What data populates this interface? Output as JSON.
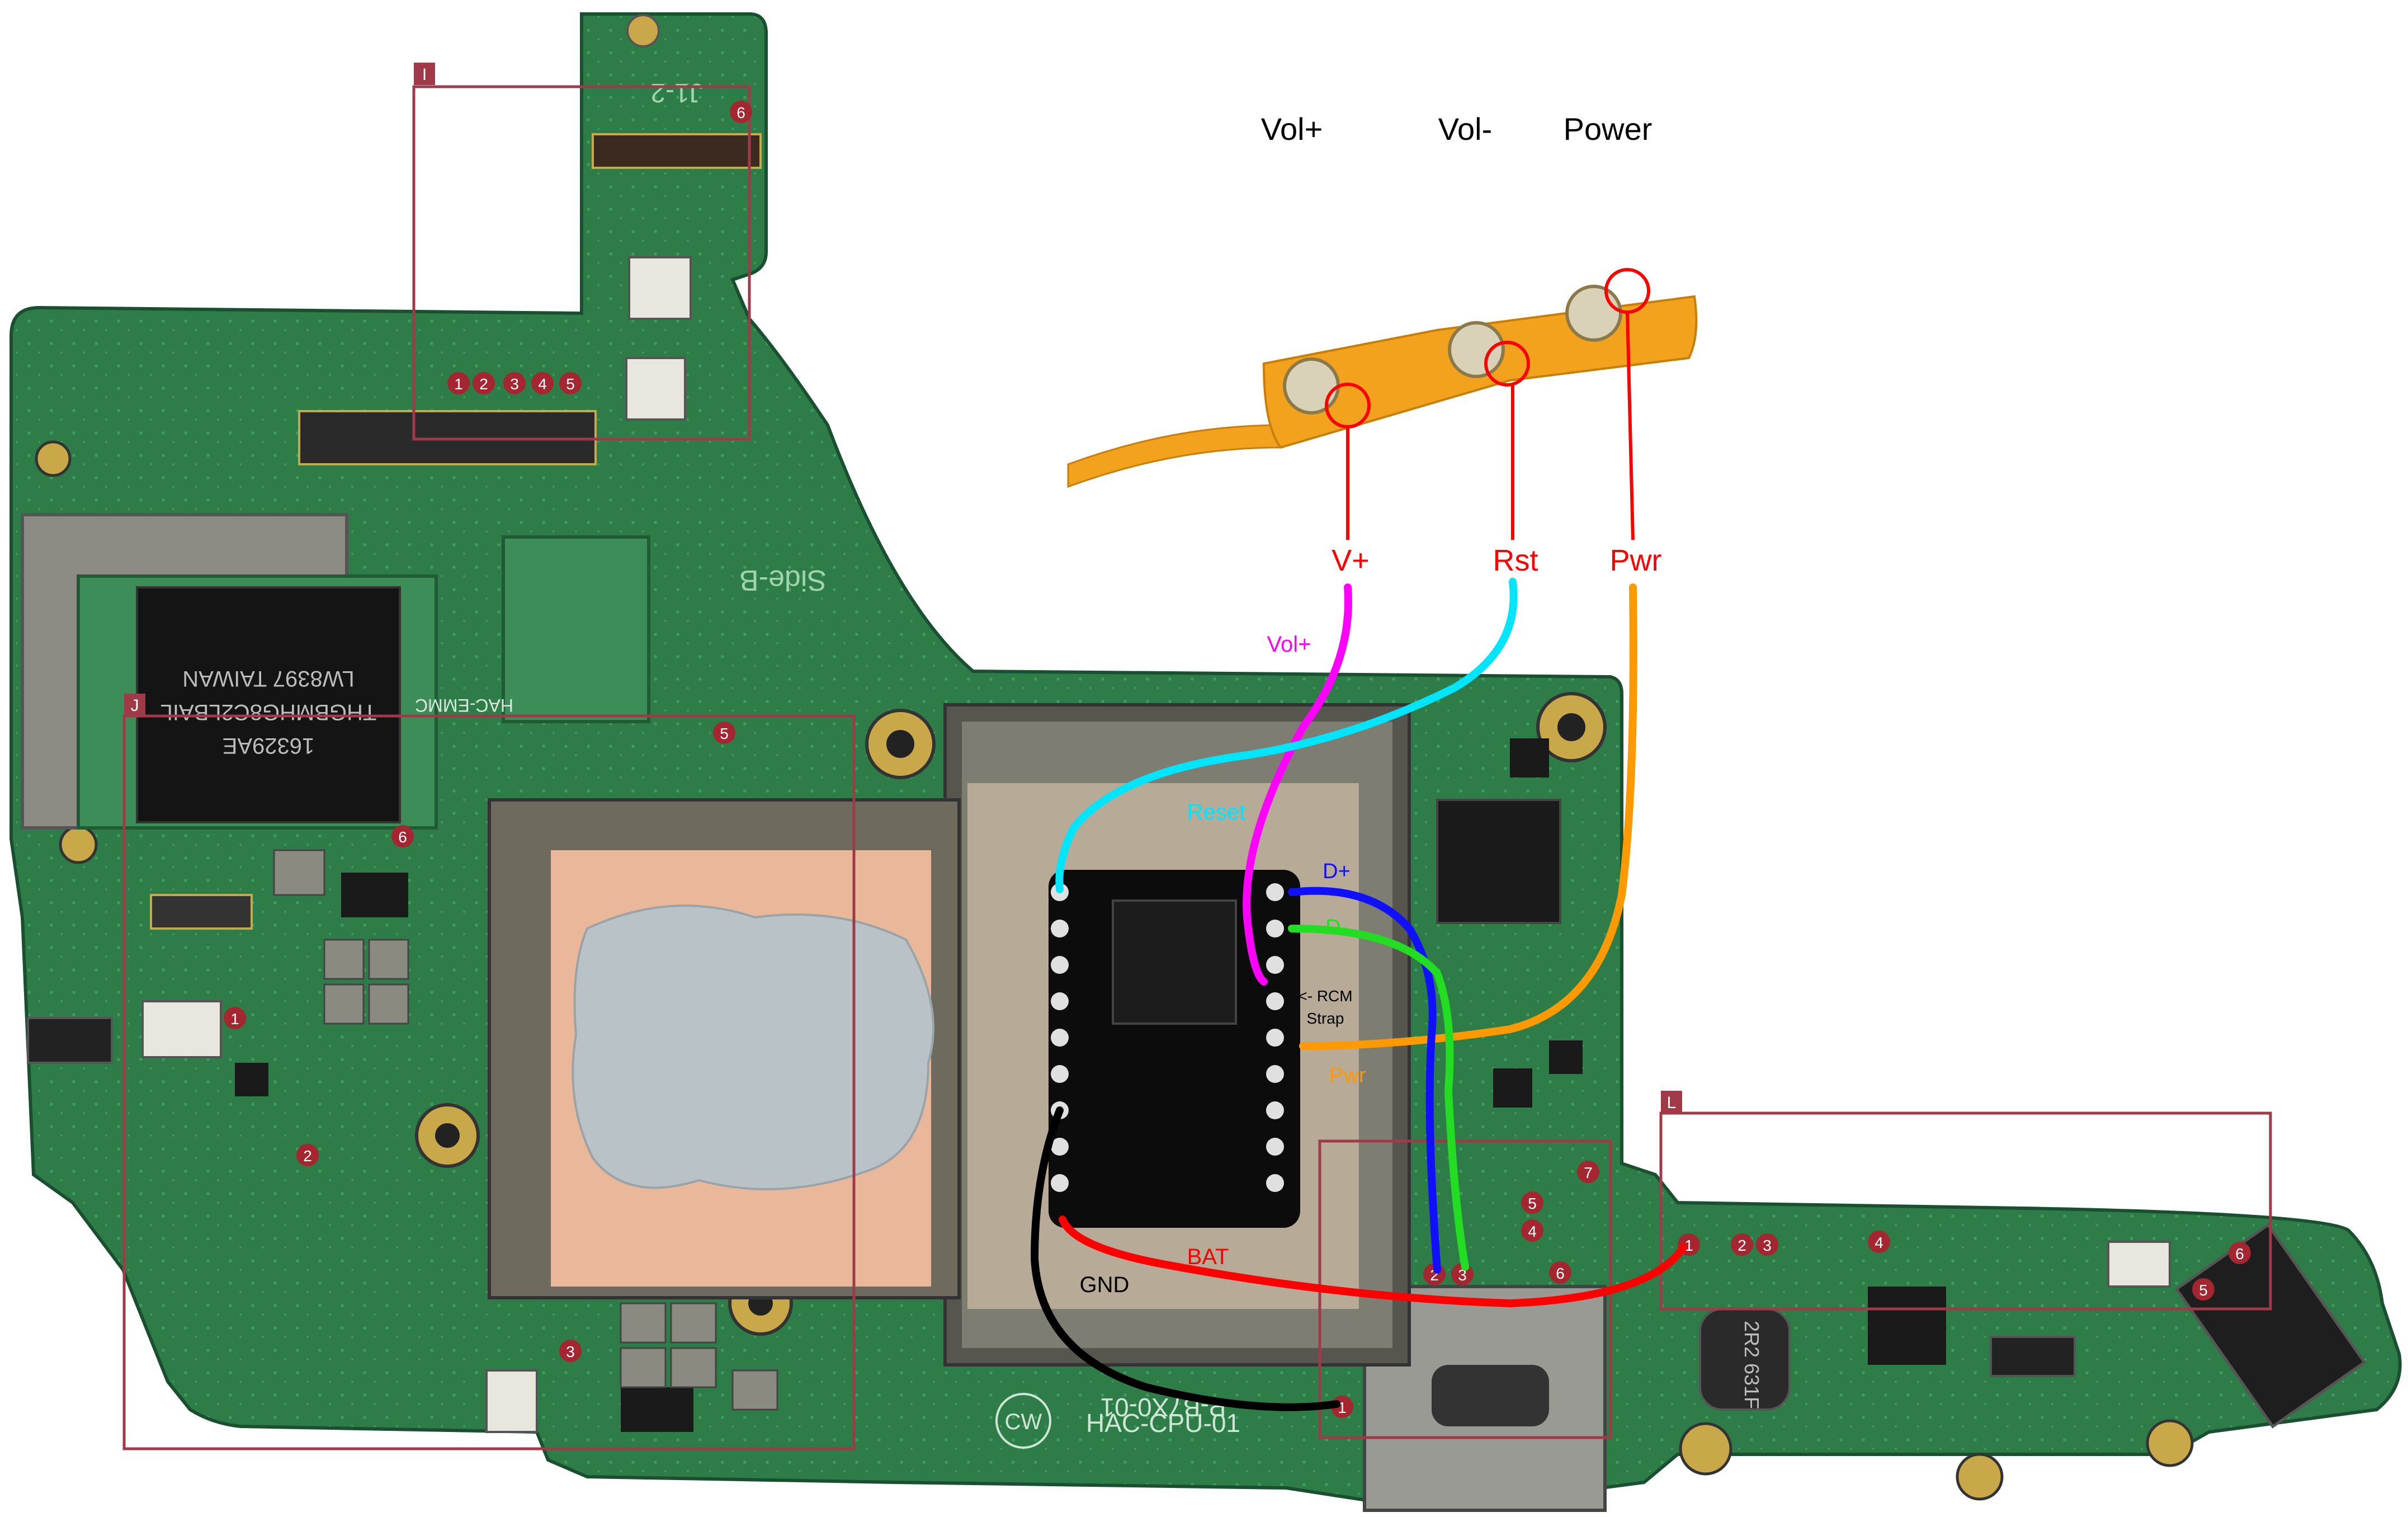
{
  "headers": {
    "vol_plus": "Vol+",
    "vol_minus": "Vol-",
    "power": "Power"
  },
  "ribbon_labels": {
    "v_plus": "V+",
    "rst": "Rst",
    "pwr": "Pwr"
  },
  "wire_labels": {
    "vol_plus": "Vol+",
    "reset": "Reset",
    "d_plus": "D+",
    "d_minus": "D-",
    "rcm_strap_line1": "<- RCM",
    "rcm_strap_line2": "Strap",
    "pwr": "Pwr",
    "bat": "BAT",
    "gnd": "GND"
  },
  "region_tags": {
    "i": "I",
    "j": "J",
    "l": "L"
  },
  "pcb_markings": {
    "side": "Side-B",
    "board": "HAC-CPU-01",
    "board_code": "P-B7X0-01",
    "emmc": "HAC-EMMC",
    "cw": "CW",
    "chip_taiwan": "LW8397 TAIWAN",
    "chip_part": "THGBMHG8C2LBAIL",
    "chip_code": "16329AE",
    "inductor": "2R2 631F",
    "conn_top": "J1-2"
  },
  "pad_numbers": {
    "top_connector": [
      "1",
      "2",
      "3",
      "4",
      "5"
    ],
    "top_i2": "6",
    "left_6": "6",
    "left_5": "5",
    "left_1": "1",
    "left_2": "2",
    "left_3": "3",
    "usb_pads": [
      "2",
      "3",
      "6",
      "4",
      "5",
      "7",
      "1"
    ],
    "usb_1": "1",
    "right_pads": [
      "1",
      "2",
      "3",
      "4",
      "5",
      "6"
    ]
  },
  "colors": {
    "pcb": "#2e7d48",
    "pcb_dark": "#1f5c34",
    "shield": "#7a7a6e",
    "copper": "#e9b89a",
    "ribbon": "#f2a21c",
    "wire_magenta": "#ff00ff",
    "wire_cyan": "#00e5ff",
    "wire_orange": "#ff9900",
    "wire_blue": "#1010ff",
    "wire_green": "#22dd22",
    "wire_red": "#ff0000",
    "wire_black": "#000000",
    "callout_red": "#ff0000",
    "region_box": "#a03a48"
  }
}
